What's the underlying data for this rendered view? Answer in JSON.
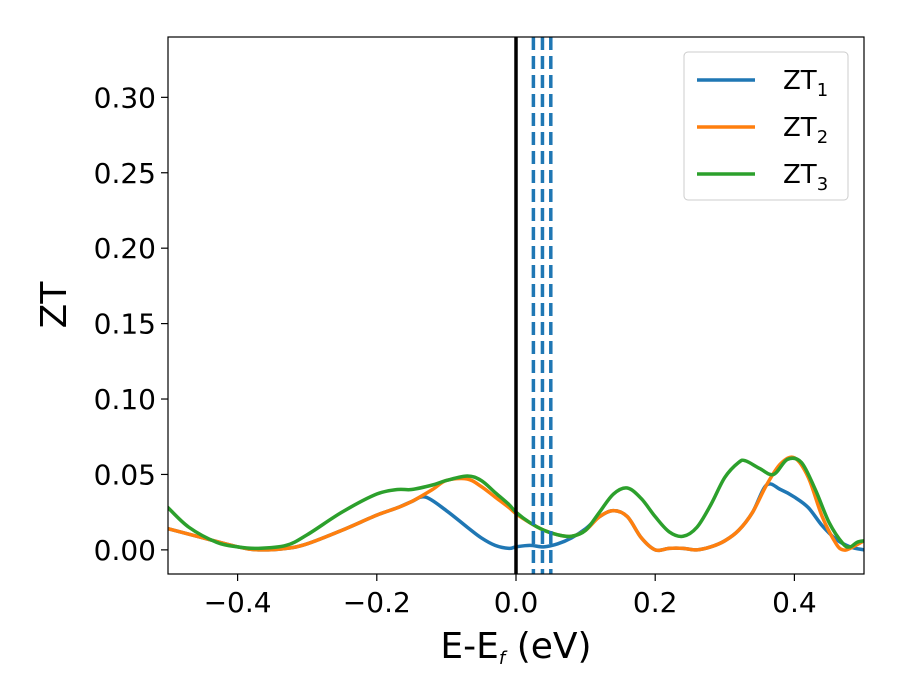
{
  "chart_data": {
    "type": "line",
    "xlabel": {
      "base": "E-E",
      "sub": "f",
      "unit": " (eV)"
    },
    "ylabel": "ZT",
    "xlim": [
      -0.5,
      0.5
    ],
    "ylim": [
      -0.016,
      0.34
    ],
    "xticks": [
      -0.4,
      -0.2,
      0.0,
      0.2,
      0.4
    ],
    "xtick_labels": [
      "−0.4",
      "−0.2",
      "0.0",
      "0.2",
      "0.4"
    ],
    "yticks": [
      0.0,
      0.05,
      0.1,
      0.15,
      0.2,
      0.25,
      0.3
    ],
    "ytick_labels": [
      "0.00",
      "0.05",
      "0.10",
      "0.15",
      "0.20",
      "0.25",
      "0.30"
    ],
    "grid": false,
    "legend_position": "top-right",
    "vertical_lines": [
      {
        "x": 0.0,
        "style": "solid",
        "color": "#000000"
      },
      {
        "x": 0.025,
        "style": "dashed",
        "color": "#1f77b4"
      },
      {
        "x": 0.038,
        "style": "dashed",
        "color": "#1f77b4"
      },
      {
        "x": 0.05,
        "style": "dashed",
        "color": "#1f77b4"
      }
    ],
    "series": [
      {
        "name": "ZT",
        "name_sub": "1",
        "color": "#1f77b4",
        "x": [
          -0.5,
          -0.45,
          -0.4,
          -0.37,
          -0.33,
          -0.3,
          -0.25,
          -0.2,
          -0.17,
          -0.15,
          -0.13,
          -0.1,
          -0.07,
          -0.05,
          -0.03,
          -0.01,
          0.0,
          0.02,
          0.04,
          0.06,
          0.08,
          0.1,
          0.12,
          0.14,
          0.16,
          0.18,
          0.2,
          0.22,
          0.24,
          0.26,
          0.28,
          0.3,
          0.32,
          0.34,
          0.36,
          0.38,
          0.4,
          0.42,
          0.44,
          0.46,
          0.48,
          0.5
        ],
        "y": [
          0.014,
          0.008,
          0.002,
          0.0,
          0.001,
          0.004,
          0.013,
          0.023,
          0.028,
          0.032,
          0.035,
          0.026,
          0.015,
          0.008,
          0.003,
          0.001,
          0.002,
          0.003,
          0.002,
          0.004,
          0.008,
          0.014,
          0.022,
          0.026,
          0.022,
          0.008,
          0.0,
          0.001,
          0.001,
          0.0,
          0.002,
          0.006,
          0.013,
          0.025,
          0.043,
          0.04,
          0.035,
          0.028,
          0.016,
          0.007,
          0.002,
          0.0
        ]
      },
      {
        "name": "ZT",
        "name_sub": "2",
        "color": "#ff7f0e",
        "x": [
          -0.5,
          -0.45,
          -0.4,
          -0.37,
          -0.33,
          -0.3,
          -0.25,
          -0.2,
          -0.17,
          -0.15,
          -0.12,
          -0.1,
          -0.07,
          -0.05,
          -0.03,
          -0.01,
          0.0,
          0.02,
          0.04,
          0.06,
          0.08,
          0.1,
          0.12,
          0.14,
          0.16,
          0.18,
          0.2,
          0.22,
          0.24,
          0.26,
          0.28,
          0.3,
          0.32,
          0.34,
          0.36,
          0.38,
          0.4,
          0.42,
          0.44,
          0.46,
          0.47,
          0.48,
          0.5
        ],
        "y": [
          0.014,
          0.008,
          0.002,
          0.0,
          0.001,
          0.004,
          0.013,
          0.023,
          0.028,
          0.032,
          0.04,
          0.046,
          0.047,
          0.042,
          0.035,
          0.028,
          0.024,
          0.018,
          0.013,
          0.01,
          0.009,
          0.013,
          0.022,
          0.026,
          0.022,
          0.008,
          0.0,
          0.001,
          0.001,
          0.0,
          0.002,
          0.006,
          0.013,
          0.025,
          0.043,
          0.057,
          0.061,
          0.048,
          0.022,
          0.004,
          0.0,
          0.001,
          0.006
        ]
      },
      {
        "name": "ZT",
        "name_sub": "3",
        "color": "#2ca02c",
        "x": [
          -0.5,
          -0.47,
          -0.43,
          -0.4,
          -0.37,
          -0.33,
          -0.3,
          -0.25,
          -0.2,
          -0.17,
          -0.15,
          -0.12,
          -0.1,
          -0.07,
          -0.05,
          -0.03,
          -0.01,
          0.0,
          0.02,
          0.04,
          0.06,
          0.08,
          0.1,
          0.12,
          0.14,
          0.16,
          0.18,
          0.2,
          0.22,
          0.24,
          0.26,
          0.28,
          0.3,
          0.32,
          0.33,
          0.35,
          0.37,
          0.39,
          0.41,
          0.43,
          0.45,
          0.47,
          0.48,
          0.49,
          0.5
        ],
        "y": [
          0.028,
          0.015,
          0.005,
          0.002,
          0.001,
          0.003,
          0.01,
          0.025,
          0.037,
          0.04,
          0.04,
          0.043,
          0.046,
          0.049,
          0.046,
          0.038,
          0.03,
          0.025,
          0.018,
          0.013,
          0.01,
          0.009,
          0.013,
          0.025,
          0.037,
          0.041,
          0.034,
          0.022,
          0.012,
          0.009,
          0.015,
          0.03,
          0.048,
          0.058,
          0.059,
          0.054,
          0.05,
          0.06,
          0.058,
          0.04,
          0.018,
          0.004,
          0.002,
          0.005,
          0.006
        ]
      }
    ]
  }
}
